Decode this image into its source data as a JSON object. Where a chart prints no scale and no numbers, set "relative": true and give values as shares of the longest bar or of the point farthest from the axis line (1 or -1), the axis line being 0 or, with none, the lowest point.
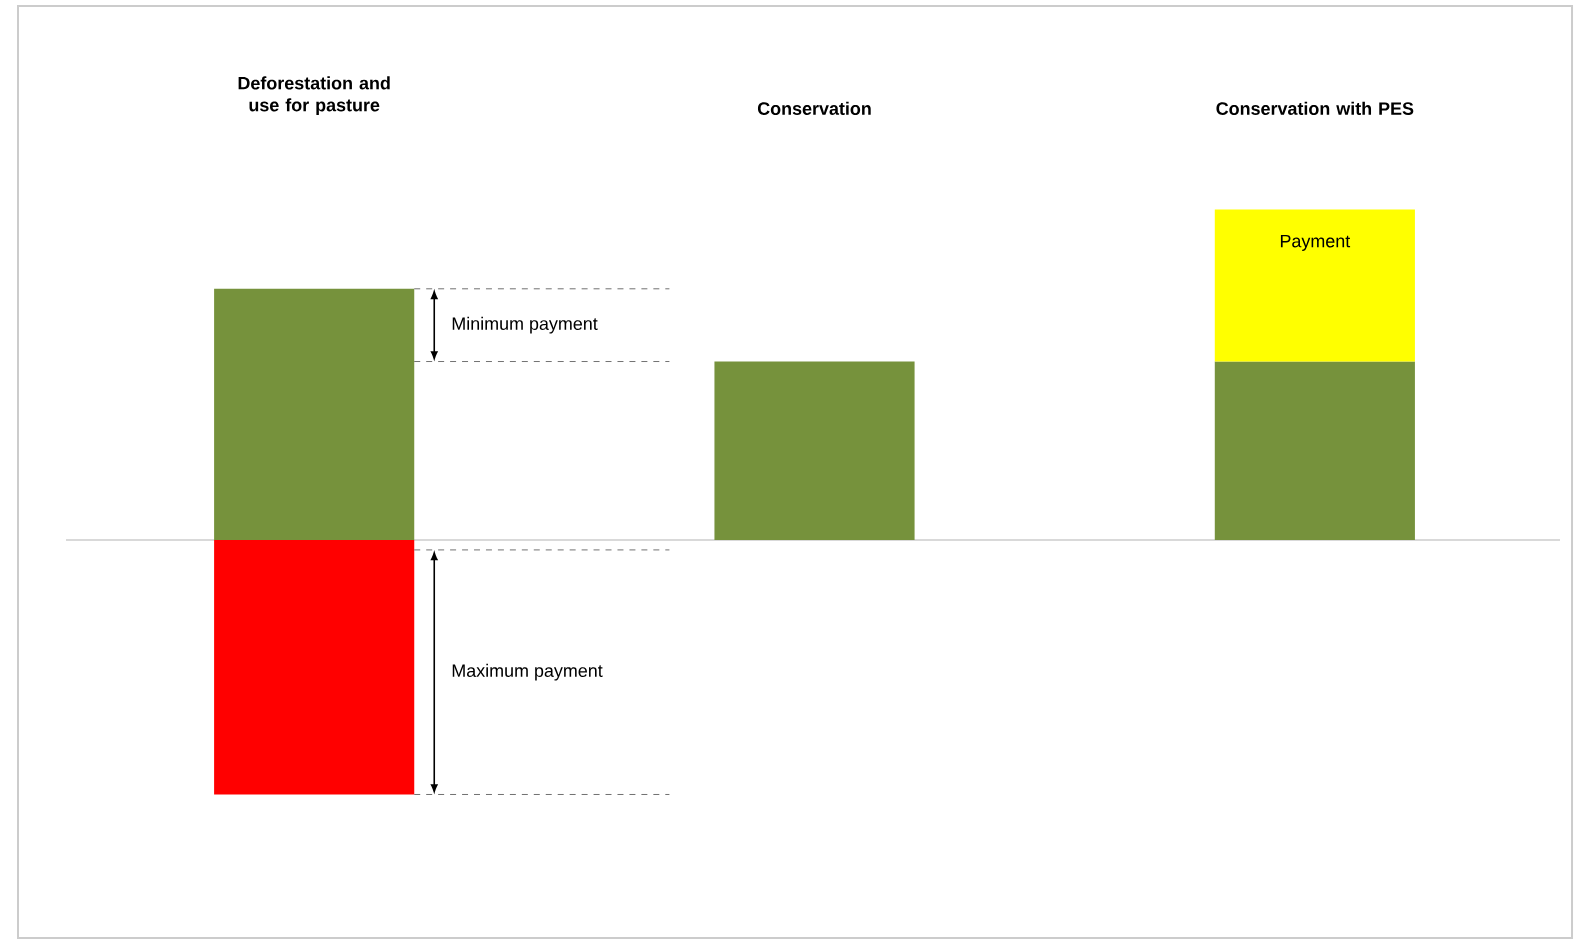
{
  "chart_data": {
    "type": "bar",
    "relative": true,
    "stacked": true,
    "legend": false,
    "categories": [
      "Deforestation and use for pasture",
      "Conservation",
      "Conservation with PES"
    ],
    "series": [
      {
        "color": "#76923c",
        "values": [
          0.76,
          0.54,
          0.54
        ]
      },
      {
        "color": "#ff0000",
        "values": [
          -0.77,
          null,
          null
        ]
      },
      {
        "name": "Payment",
        "color": "#ffff00",
        "values": [
          null,
          null,
          0.46
        ]
      }
    ],
    "ref_lines": [
      {
        "axis": "y",
        "value": 0.76,
        "line_style": "dashed",
        "color": "#4c4c4c"
      },
      {
        "axis": "y",
        "value": 0.54,
        "line_style": "dashed",
        "color": "#4c4c4c"
      },
      {
        "axis": "y",
        "value": -0.03,
        "line_style": "dashed",
        "color": "#4c4c4c"
      },
      {
        "axis": "y",
        "value": -0.77,
        "line_style": "dashed",
        "color": "#4c4c4c"
      }
    ],
    "annotations": [
      "Minimum payment",
      "Maximum payment"
    ]
  }
}
